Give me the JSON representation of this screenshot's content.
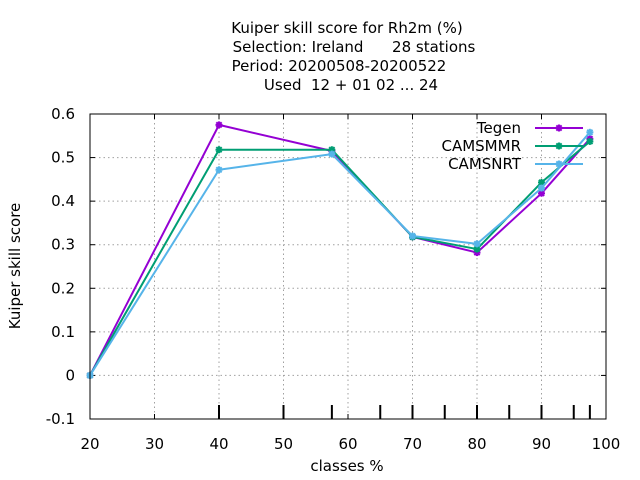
{
  "chart_data": {
    "type": "line",
    "title_lines": [
      "Kuiper skill score  for Rh2m (%)",
      "Selection: Ireland      28 stations",
      "Period: 20200508-20200522",
      "Used  12 + 01 02 ... 24"
    ],
    "xlabel": "classes %",
    "ylabel": "Kuiper skill score",
    "xlim": [
      20,
      100
    ],
    "ylim": [
      -0.1,
      0.6
    ],
    "xticks": [
      20,
      30,
      40,
      50,
      60,
      70,
      80,
      90,
      100
    ],
    "yticks": [
      -0.1,
      0,
      0.1,
      0.2,
      0.3,
      0.4,
      0.5,
      0.6
    ],
    "xtick_labels": [
      "20",
      "30",
      "40",
      "50",
      "60",
      "70",
      "80",
      "90",
      "100"
    ],
    "ytick_labels": [
      "-0.1",
      "0",
      "0.1",
      "0.2",
      "0.3",
      "0.4",
      "0.5",
      "0.6"
    ],
    "class_marks": [
      40,
      50,
      57.5,
      65,
      70,
      75,
      80,
      85,
      90,
      95,
      97.5
    ],
    "grid": true,
    "legend_position": "top-right",
    "series": [
      {
        "name": "Tegen",
        "color": "#9400d3",
        "x": [
          20,
          40,
          57.5,
          70,
          80,
          90,
          97.5
        ],
        "y": [
          0.0,
          0.575,
          0.515,
          0.318,
          0.282,
          0.418,
          0.543
        ]
      },
      {
        "name": "CAMSMMR",
        "color": "#009e73",
        "x": [
          20,
          40,
          57.5,
          70,
          80,
          90,
          97.5
        ],
        "y": [
          0.0,
          0.518,
          0.518,
          0.318,
          0.29,
          0.443,
          0.537
        ]
      },
      {
        "name": "CAMSNRT",
        "color": "#56b4e9",
        "x": [
          20,
          40,
          57.5,
          70,
          80,
          90,
          97.5
        ],
        "y": [
          0.0,
          0.472,
          0.508,
          0.32,
          0.302,
          0.43,
          0.558
        ]
      }
    ]
  }
}
